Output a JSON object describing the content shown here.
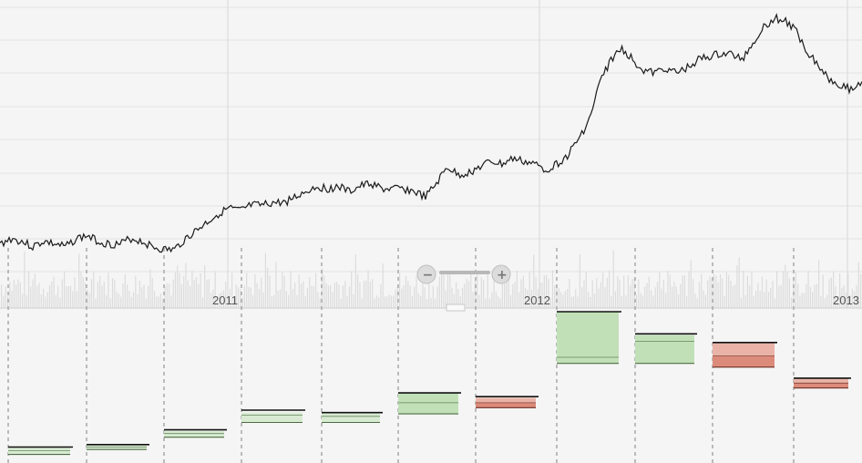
{
  "chart_data": {
    "type": "line",
    "title": "",
    "x_axis": {
      "tick_labels": [
        "2011",
        "2012",
        "2013"
      ]
    },
    "price_line": {
      "stroke": "#1a1a1a",
      "y": [
        2.4,
        2.6,
        2.5,
        2.3,
        2.5,
        2.4,
        2.3,
        2.6,
        2.7,
        2.5,
        2.4,
        2.4,
        2.6,
        2.5,
        2.3,
        2.2,
        2.2,
        2.6,
        2.9,
        3.2,
        3.5,
        3.7,
        3.6,
        3.8,
        3.8,
        3.9,
        3.9,
        4.1,
        4.3,
        4.5,
        4.4,
        4.5,
        4.3,
        4.5,
        4.6,
        4.4,
        4.4,
        4.4,
        4.3,
        4.1,
        4.6,
        5.2,
        4.9,
        5.0,
        5.2,
        5.4,
        5.3,
        5.5,
        5.4,
        5.3,
        5.1,
        5.3,
        5.6,
        6.2,
        6.9,
        8.3,
        9.1,
        9.5,
        9.1,
        8.7,
        8.6,
        8.8,
        8.6,
        8.8,
        9.1,
        9.2,
        9.3,
        9.3,
        9.1,
        9.7,
        10.3,
        10.6,
        10.5,
        10.1,
        9.4,
        8.9,
        8.4,
        8.2,
        8.0,
        8.3
      ]
    },
    "monthly_candles": [
      {
        "open": 0.6,
        "close": 1.2,
        "low": 0.6,
        "high": 1.2,
        "mid": 0.9,
        "direction": "up"
      },
      {
        "open": 1.0,
        "close": 1.4,
        "low": 1.0,
        "high": 1.4,
        "mid": 1.2,
        "direction": "up"
      },
      {
        "open": 2.0,
        "close": 2.5,
        "low": 2.0,
        "high": 2.6,
        "mid": 2.3,
        "direction": "up"
      },
      {
        "open": 3.2,
        "close": 4.0,
        "low": 3.2,
        "high": 4.2,
        "mid": 3.8,
        "direction": "up"
      },
      {
        "open": 3.2,
        "close": 4.0,
        "low": 3.2,
        "high": 4.0,
        "mid": 3.7,
        "direction": "up"
      },
      {
        "open": 3.9,
        "close": 5.6,
        "low": 3.9,
        "high": 5.6,
        "mid": 4.8,
        "direction": "up"
      },
      {
        "open": 5.2,
        "close": 4.4,
        "low": 4.4,
        "high": 5.3,
        "mid": 4.8,
        "direction": "down"
      },
      {
        "open": 8.0,
        "close": 12.2,
        "low": 8.0,
        "high": 12.2,
        "mid": 8.5,
        "direction": "up"
      },
      {
        "open": 8.0,
        "close": 10.3,
        "low": 8.0,
        "high": 10.4,
        "mid": 9.8,
        "direction": "up"
      },
      {
        "open": 9.7,
        "close": 7.7,
        "low": 7.7,
        "high": 9.7,
        "mid": 8.6,
        "direction": "down"
      },
      {
        "open": 6.8,
        "close": 6.0,
        "low": 6.0,
        "high": 6.8,
        "mid": 6.4,
        "direction": "down"
      }
    ],
    "grid": true,
    "colors": {
      "up_fill": "#d8ebd2",
      "up_fill_strong": "#c2e0b8",
      "up_stroke": "#4d6b43",
      "down_fill": "#e9b3a8",
      "down_fill_strong": "#dc8b7b",
      "down_stroke": "#6b2d22",
      "grid": "#e3e3e3",
      "volume": "#dcdcdc"
    }
  }
}
